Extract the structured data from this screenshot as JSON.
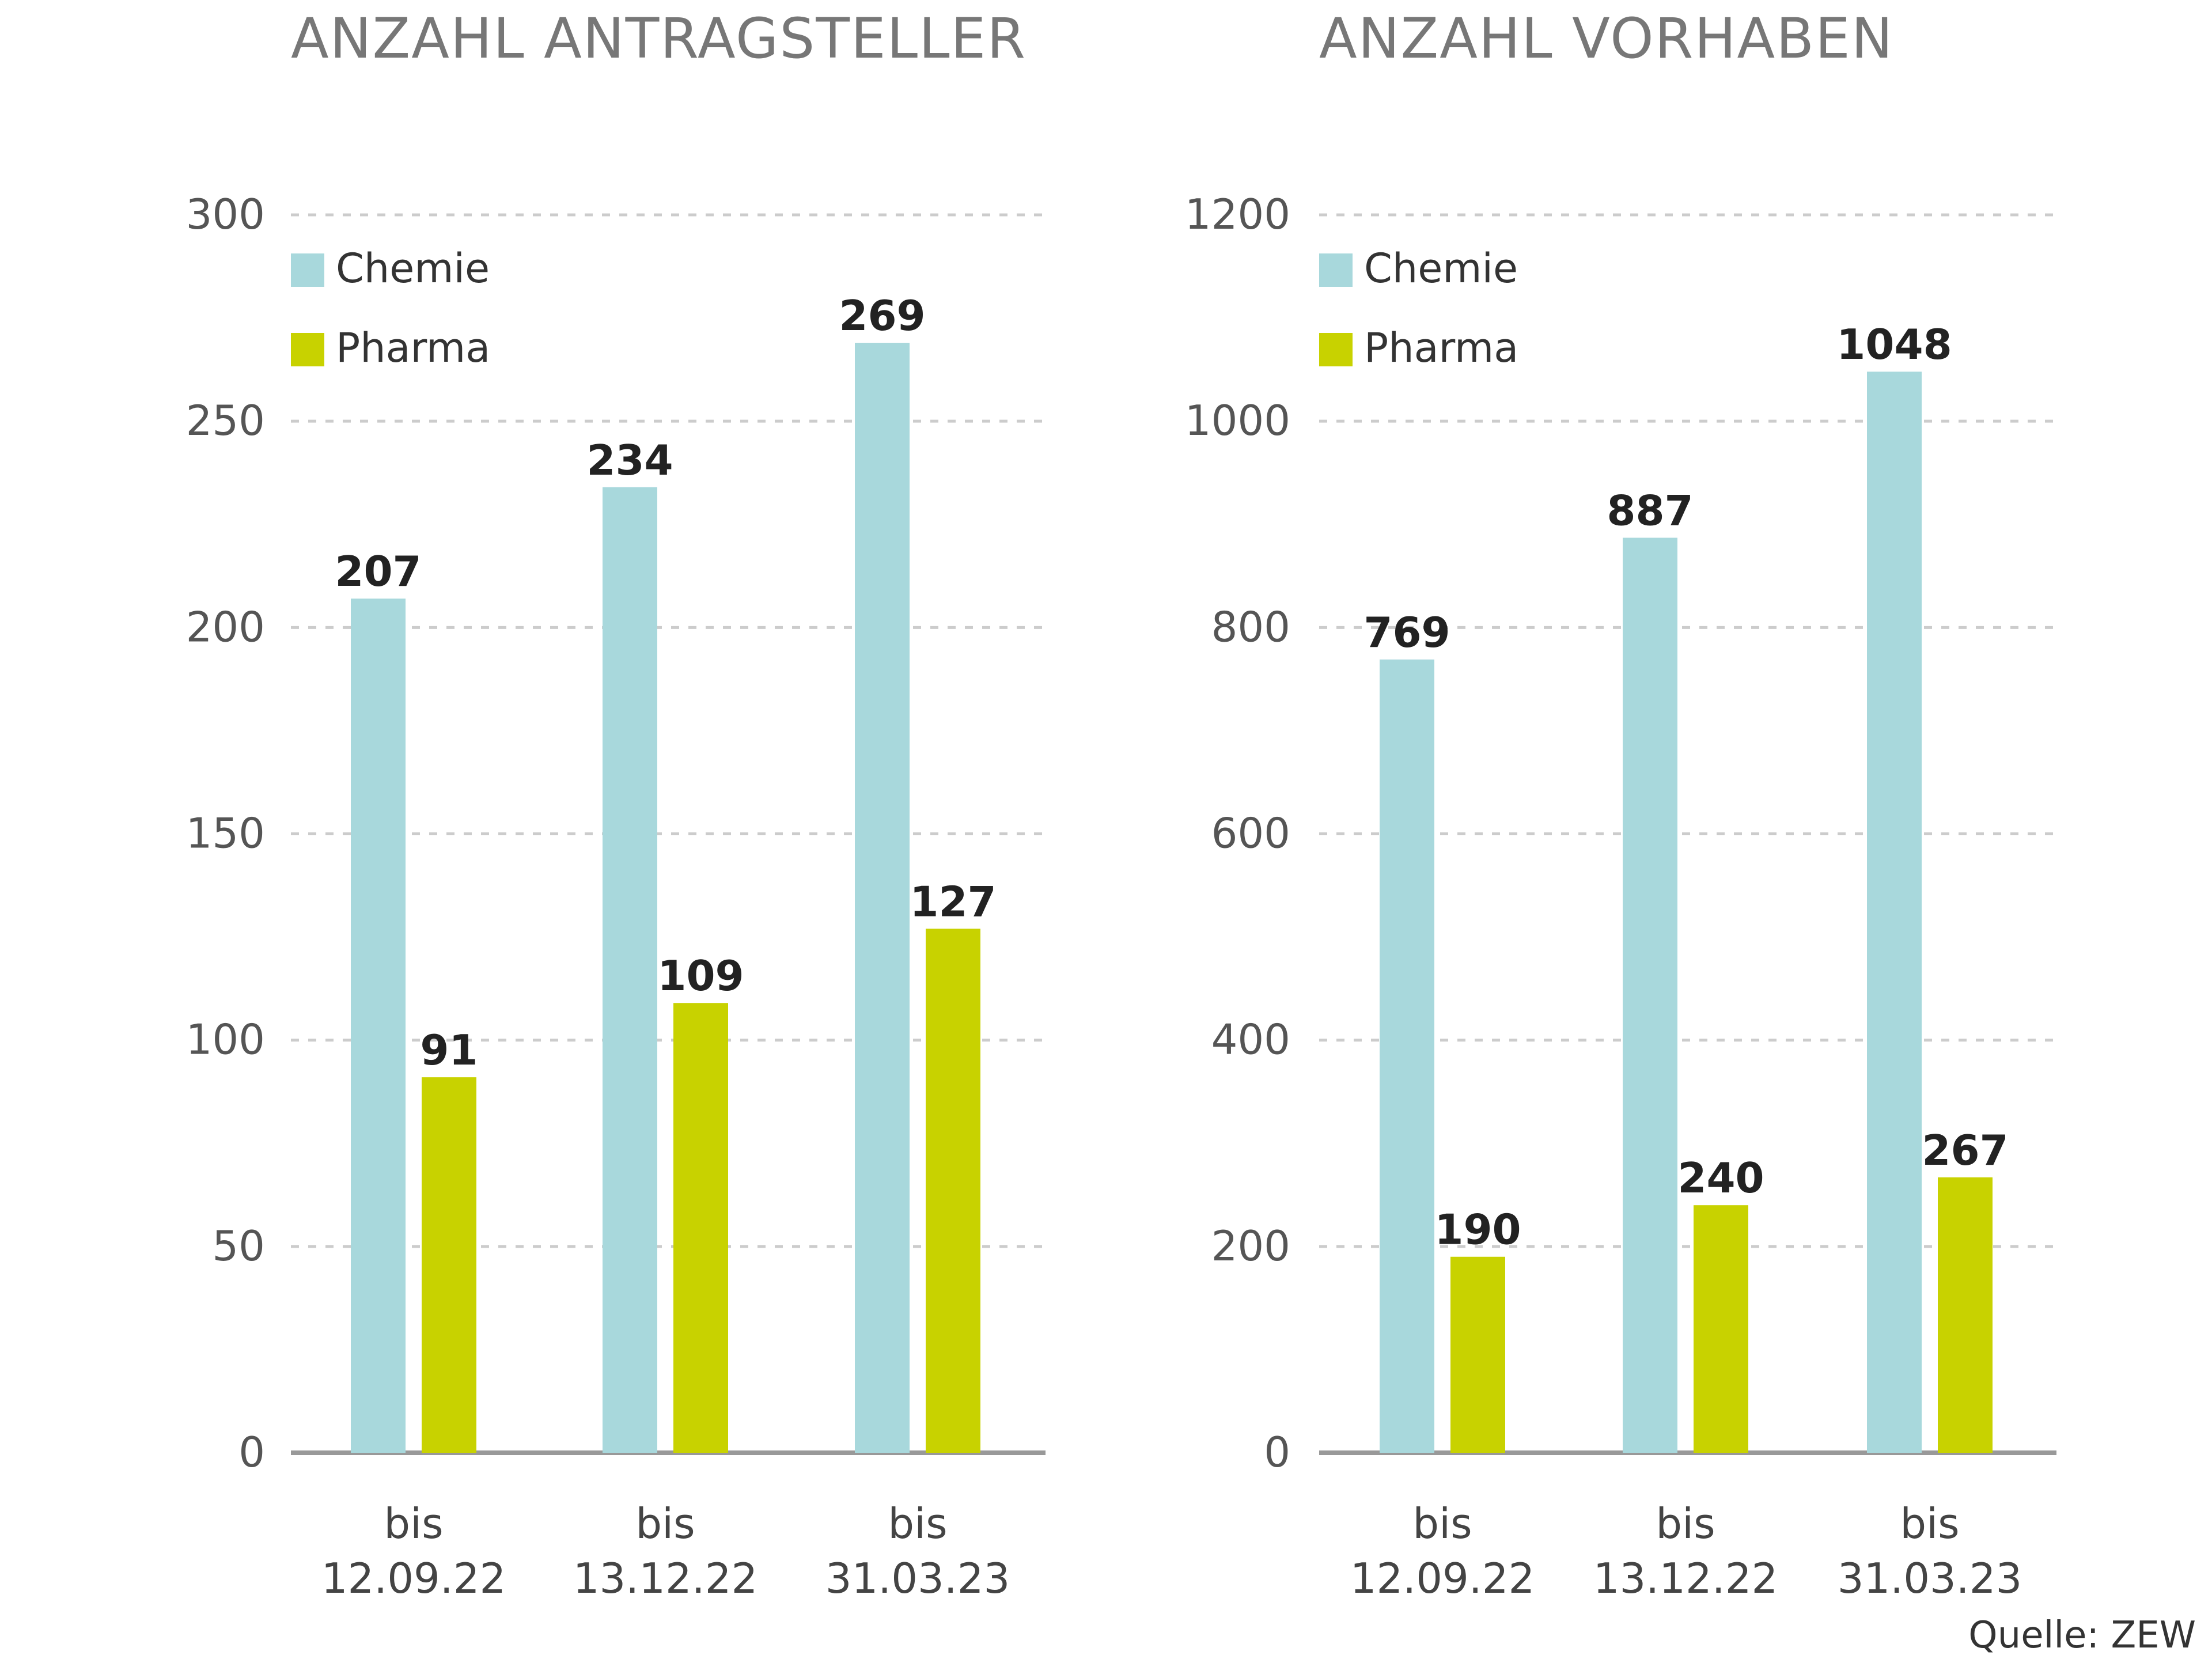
{
  "colors": {
    "chemie": "#A8D8DC",
    "pharma": "#C8D200",
    "grid": "#CCCCCC",
    "axis": "#999999"
  },
  "source": "Quelle: ZEW",
  "chart_data": [
    {
      "type": "bar",
      "title": "ANZAHL ANTRAGSTELLER",
      "categories": [
        [
          "bis",
          "12.09.22"
        ],
        [
          "bis",
          "13.12.22"
        ],
        [
          "bis",
          "31.03.23"
        ]
      ],
      "series": [
        {
          "name": "Chemie",
          "values": [
            207,
            234,
            269
          ]
        },
        {
          "name": "Pharma",
          "values": [
            91,
            109,
            127
          ]
        }
      ],
      "ylim": [
        0,
        300
      ],
      "yticks": [
        0,
        50,
        100,
        150,
        200,
        250,
        300
      ],
      "xlabel": "",
      "ylabel": "",
      "grid": true,
      "legend": "top-left"
    },
    {
      "type": "bar",
      "title": "ANZAHL VORHABEN",
      "categories": [
        [
          "bis",
          "12.09.22"
        ],
        [
          "bis",
          "13.12.22"
        ],
        [
          "bis",
          "31.03.23"
        ]
      ],
      "series": [
        {
          "name": "Chemie",
          "values": [
            769,
            887,
            1048
          ]
        },
        {
          "name": "Pharma",
          "values": [
            190,
            240,
            267
          ]
        }
      ],
      "ylim": [
        0,
        1200
      ],
      "yticks": [
        0,
        200,
        400,
        600,
        800,
        1000,
        1200
      ],
      "xlabel": "",
      "ylabel": "",
      "grid": true,
      "legend": "top-left"
    }
  ]
}
